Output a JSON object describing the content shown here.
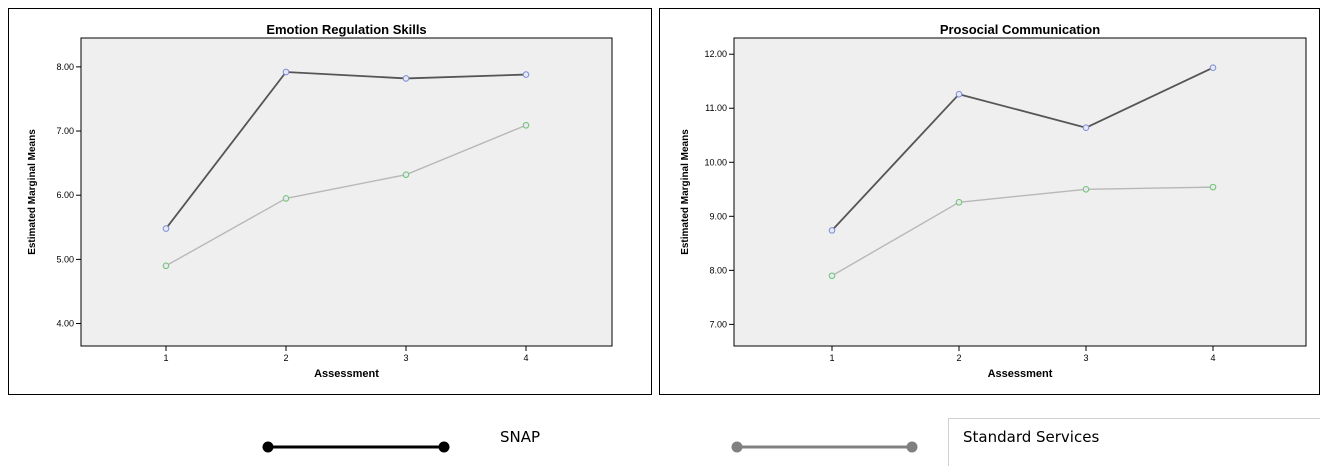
{
  "chart_data": [
    {
      "type": "line",
      "title": "Emotion Regulation Skills",
      "xlabel": "Assessment",
      "ylabel": "Estimated Marginal Means",
      "categories": [
        "1",
        "2",
        "3",
        "4"
      ],
      "ylim": [
        3.65,
        8.45
      ],
      "yticks": [
        "4.00",
        "5.00",
        "6.00",
        "7.00",
        "8.00"
      ],
      "series": [
        {
          "name": "SNAP",
          "values": [
            5.48,
            7.92,
            7.82,
            7.88
          ]
        },
        {
          "name": "Standard Services",
          "values": [
            4.9,
            5.95,
            6.32,
            7.09
          ]
        }
      ],
      "grid": false
    },
    {
      "type": "line",
      "title": "Prosocial Communication",
      "xlabel": "Assessment",
      "ylabel": "Estimated Marginal Means",
      "categories": [
        "1",
        "2",
        "3",
        "4"
      ],
      "ylim": [
        6.6,
        12.3
      ],
      "yticks": [
        "7.00",
        "8.00",
        "9.00",
        "10.00",
        "11.00",
        "12.00"
      ],
      "series": [
        {
          "name": "SNAP",
          "values": [
            8.74,
            11.26,
            10.64,
            11.75
          ]
        },
        {
          "name": "Standard Services",
          "values": [
            7.9,
            9.26,
            9.5,
            9.54
          ]
        }
      ],
      "grid": false
    }
  ],
  "legend": {
    "items": [
      {
        "label": "SNAP",
        "color": "#000000"
      },
      {
        "label": "Standard Services",
        "color": "#808080"
      }
    ]
  },
  "colors": {
    "plot_background": "#efefef",
    "series_1_line": "#555555",
    "series_2_line": "#b8b8b8",
    "series_1_marker": "#7b8ed6",
    "series_2_marker": "#6cc46c"
  }
}
